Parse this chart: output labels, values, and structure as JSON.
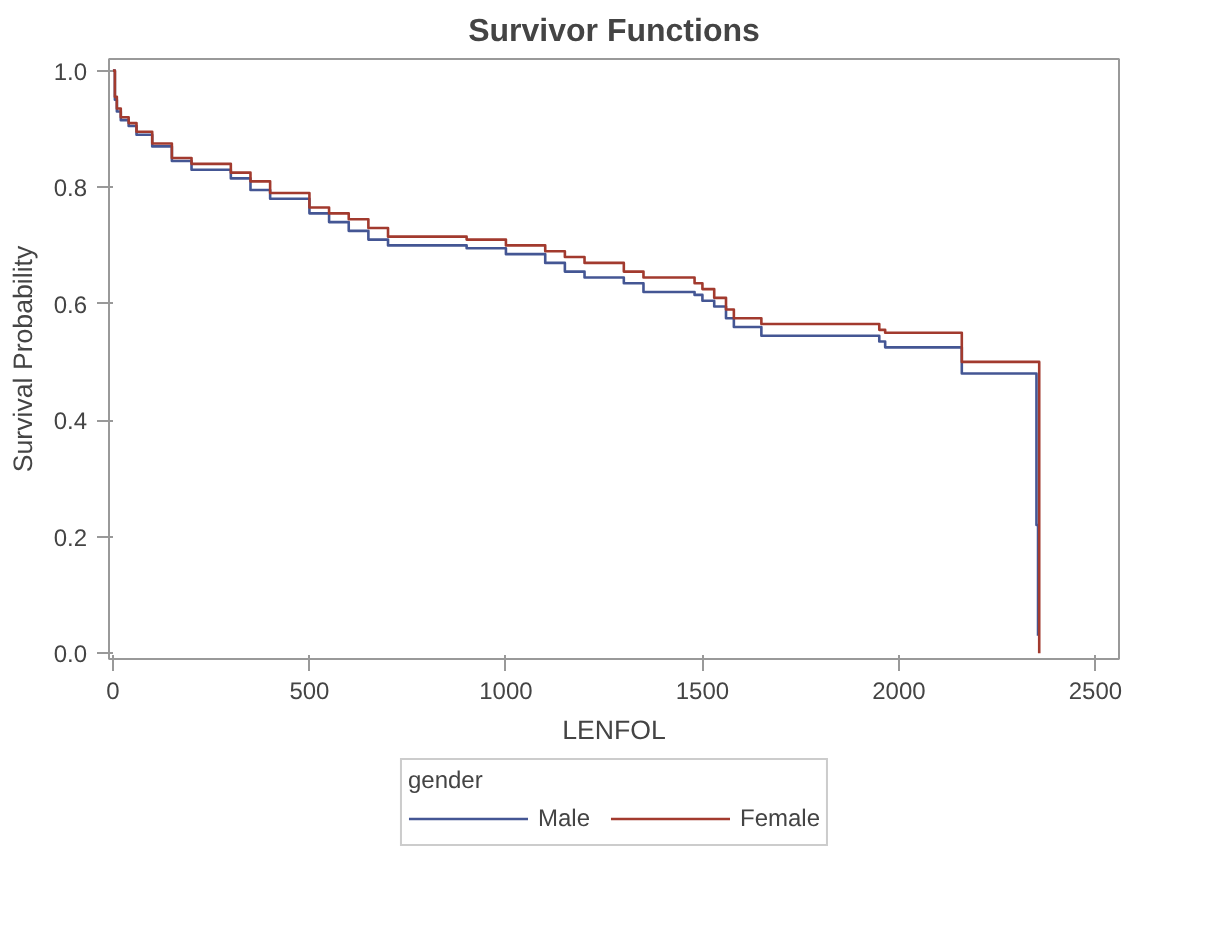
{
  "chart_data": {
    "type": "step",
    "title": "Survivor Functions",
    "xlabel": "LENFOL",
    "ylabel": "Survival Probability",
    "legend_title": "gender",
    "xlim": [
      -10,
      2560
    ],
    "ylim": [
      -0.01,
      1.02
    ],
    "xticks": [
      0,
      500,
      1000,
      1500,
      2000,
      2500
    ],
    "yticks": [
      {
        "value": 0,
        "label": "0.0"
      },
      0.2,
      0.4,
      0.6,
      0.8,
      {
        "value": 1,
        "label": "1.0"
      }
    ],
    "grid": false,
    "legend": "bottom",
    "series": [
      {
        "name": "Male",
        "color": "#445694",
        "x": [
          0,
          5,
          10,
          20,
          40,
          60,
          100,
          150,
          200,
          300,
          350,
          400,
          500,
          550,
          600,
          650,
          700,
          900,
          1000,
          1100,
          1150,
          1200,
          1300,
          1350,
          1480,
          1500,
          1530,
          1560,
          1580,
          1650,
          1950,
          1965,
          2160,
          2350,
          2354
        ],
        "values": [
          1.0,
          0.95,
          0.93,
          0.915,
          0.905,
          0.89,
          0.87,
          0.845,
          0.83,
          0.815,
          0.795,
          0.78,
          0.755,
          0.74,
          0.725,
          0.71,
          0.7,
          0.695,
          0.685,
          0.67,
          0.655,
          0.645,
          0.635,
          0.62,
          0.615,
          0.605,
          0.595,
          0.575,
          0.56,
          0.545,
          0.535,
          0.525,
          0.48,
          0.22,
          0.03
        ]
      },
      {
        "name": "Female",
        "color": "#a23a2e",
        "x": [
          0,
          5,
          10,
          20,
          40,
          60,
          100,
          150,
          200,
          300,
          350,
          400,
          500,
          550,
          600,
          650,
          700,
          900,
          1000,
          1100,
          1150,
          1200,
          1300,
          1350,
          1480,
          1500,
          1530,
          1560,
          1580,
          1650,
          1950,
          1965,
          2160,
          2357
        ],
        "values": [
          1.0,
          0.955,
          0.935,
          0.92,
          0.91,
          0.895,
          0.875,
          0.85,
          0.84,
          0.825,
          0.81,
          0.79,
          0.765,
          0.755,
          0.745,
          0.73,
          0.715,
          0.71,
          0.7,
          0.69,
          0.68,
          0.67,
          0.655,
          0.645,
          0.635,
          0.625,
          0.61,
          0.59,
          0.575,
          0.565,
          0.555,
          0.55,
          0.5,
          0.0
        ]
      }
    ]
  }
}
